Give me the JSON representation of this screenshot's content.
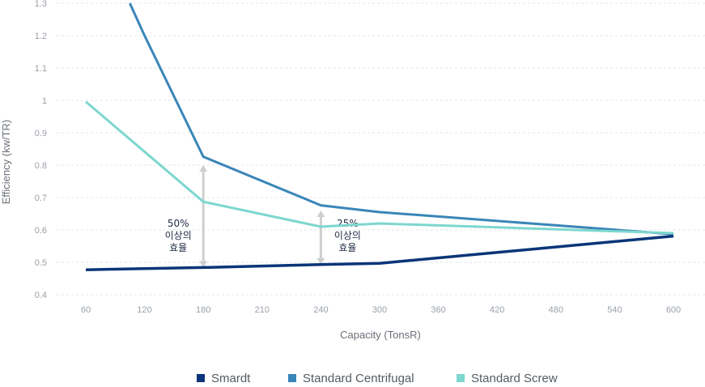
{
  "chart_data": {
    "type": "line",
    "title": "",
    "xlabel": "Capacity (TonsR)",
    "ylabel": "Efficiency (kw/TR)",
    "x_ticks": [
      "60",
      "120",
      "180",
      "210",
      "240",
      "300",
      "360",
      "420",
      "480",
      "540",
      "600"
    ],
    "y_ticks": [
      "0.4",
      "0.5",
      "0.6",
      "0.7",
      "0.8",
      "0.9",
      "1",
      "1.1",
      "1.2",
      "1.3"
    ],
    "ylim": [
      0.4,
      1.3
    ],
    "grid": true,
    "series": [
      {
        "name": "Smardt",
        "color": "#0b3578",
        "points": [
          [
            0,
            0.477
          ],
          [
            2,
            0.484
          ],
          [
            4,
            0.493
          ],
          [
            5,
            0.497
          ],
          [
            10,
            0.581
          ]
        ]
      },
      {
        "name": "Standard Centrifugal",
        "color": "#3a86b8",
        "points": [
          [
            0.75,
            1.3
          ],
          [
            1,
            1.2
          ],
          [
            2,
            0.826
          ],
          [
            4,
            0.676
          ],
          [
            5,
            0.655
          ],
          [
            10,
            0.587
          ]
        ]
      },
      {
        "name": "Standard Screw",
        "color": "#7dd7cf",
        "points": [
          [
            0,
            0.996
          ],
          [
            2,
            0.687
          ],
          [
            4,
            0.61
          ],
          [
            5,
            0.62
          ],
          [
            10,
            0.59
          ]
        ]
      }
    ],
    "annotations": [
      {
        "x": 2,
        "from": 0.484,
        "to": 0.8,
        "lines": [
          "50%",
          "이상의",
          "효율"
        ],
        "side": "left"
      },
      {
        "x": 4,
        "from": 0.493,
        "to": 0.66,
        "lines": [
          "25%",
          "이상의",
          "효율"
        ],
        "side": "right"
      }
    ],
    "legend": {
      "position": "bottom-center"
    }
  }
}
